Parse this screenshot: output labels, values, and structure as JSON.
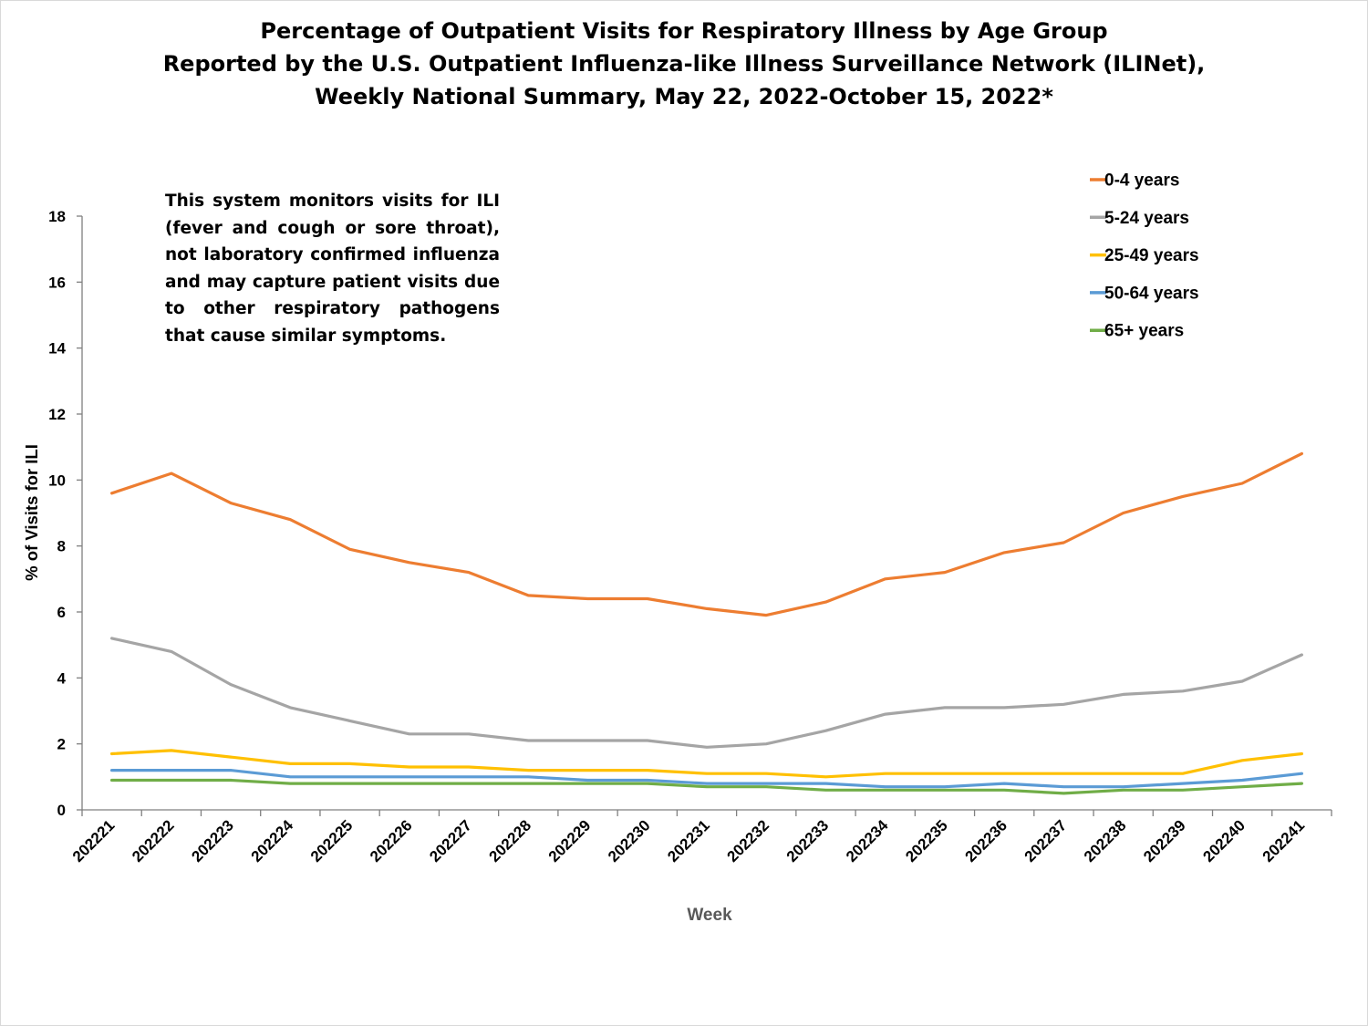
{
  "title_lines": [
    "Percentage of Outpatient Visits for Respiratory Illness by Age Group",
    "Reported by the U.S. Outpatient Influenza-like Illness Surveillance Network (ILINet),",
    "Weekly National Summary, May 22, 2022-October 15, 2022*"
  ],
  "note": "This system monitors visits for ILI (fever and cough or sore throat), not laboratory confirmed influenza and may capture patient visits due to other respiratory pathogens that cause similar symptoms.",
  "chart_data": {
    "type": "line",
    "title": "Percentage of Outpatient Visits for Respiratory Illness by Age Group Reported by the U.S. Outpatient Influenza-like Illness Surveillance Network (ILINet), Weekly National Summary, May 22, 2022-October 15, 2022*",
    "xlabel": "Week",
    "ylabel": "% of Visits for ILI",
    "ylim": [
      0,
      18
    ],
    "yticks": [
      0,
      2,
      4,
      6,
      8,
      10,
      12,
      14,
      16,
      18
    ],
    "grid": false,
    "legend_position": "top-right",
    "categories": [
      "202221",
      "202222",
      "202223",
      "202224",
      "202225",
      "202226",
      "202227",
      "202228",
      "202229",
      "202230",
      "202231",
      "202232",
      "202233",
      "202234",
      "202235",
      "202236",
      "202237",
      "202238",
      "202239",
      "202240",
      "202241"
    ],
    "series": [
      {
        "name": "0-4 years",
        "color": "#ed7d31",
        "values": [
          9.6,
          10.2,
          9.3,
          8.8,
          7.9,
          7.5,
          7.2,
          6.5,
          6.4,
          6.4,
          6.1,
          5.9,
          6.3,
          7.0,
          7.2,
          7.8,
          8.1,
          9.0,
          9.5,
          9.9,
          10.8
        ]
      },
      {
        "name": "5-24 years",
        "color": "#a5a5a5",
        "values": [
          5.2,
          4.8,
          3.8,
          3.1,
          2.7,
          2.3,
          2.3,
          2.1,
          2.1,
          2.1,
          1.9,
          2.0,
          2.4,
          2.9,
          3.1,
          3.1,
          3.2,
          3.5,
          3.6,
          3.9,
          4.7
        ]
      },
      {
        "name": "25-49 years",
        "color": "#ffc000",
        "values": [
          1.7,
          1.8,
          1.6,
          1.4,
          1.4,
          1.3,
          1.3,
          1.2,
          1.2,
          1.2,
          1.1,
          1.1,
          1.0,
          1.1,
          1.1,
          1.1,
          1.1,
          1.1,
          1.1,
          1.5,
          1.7
        ]
      },
      {
        "name": "50-64 years",
        "color": "#5b9bd5",
        "values": [
          1.2,
          1.2,
          1.2,
          1.0,
          1.0,
          1.0,
          1.0,
          1.0,
          0.9,
          0.9,
          0.8,
          0.8,
          0.8,
          0.7,
          0.7,
          0.8,
          0.7,
          0.7,
          0.8,
          0.9,
          1.1
        ]
      },
      {
        "name": "65+ years",
        "color": "#70ad47",
        "values": [
          0.9,
          0.9,
          0.9,
          0.8,
          0.8,
          0.8,
          0.8,
          0.8,
          0.8,
          0.8,
          0.7,
          0.7,
          0.6,
          0.6,
          0.6,
          0.6,
          0.5,
          0.6,
          0.6,
          0.7,
          0.8
        ]
      }
    ]
  }
}
